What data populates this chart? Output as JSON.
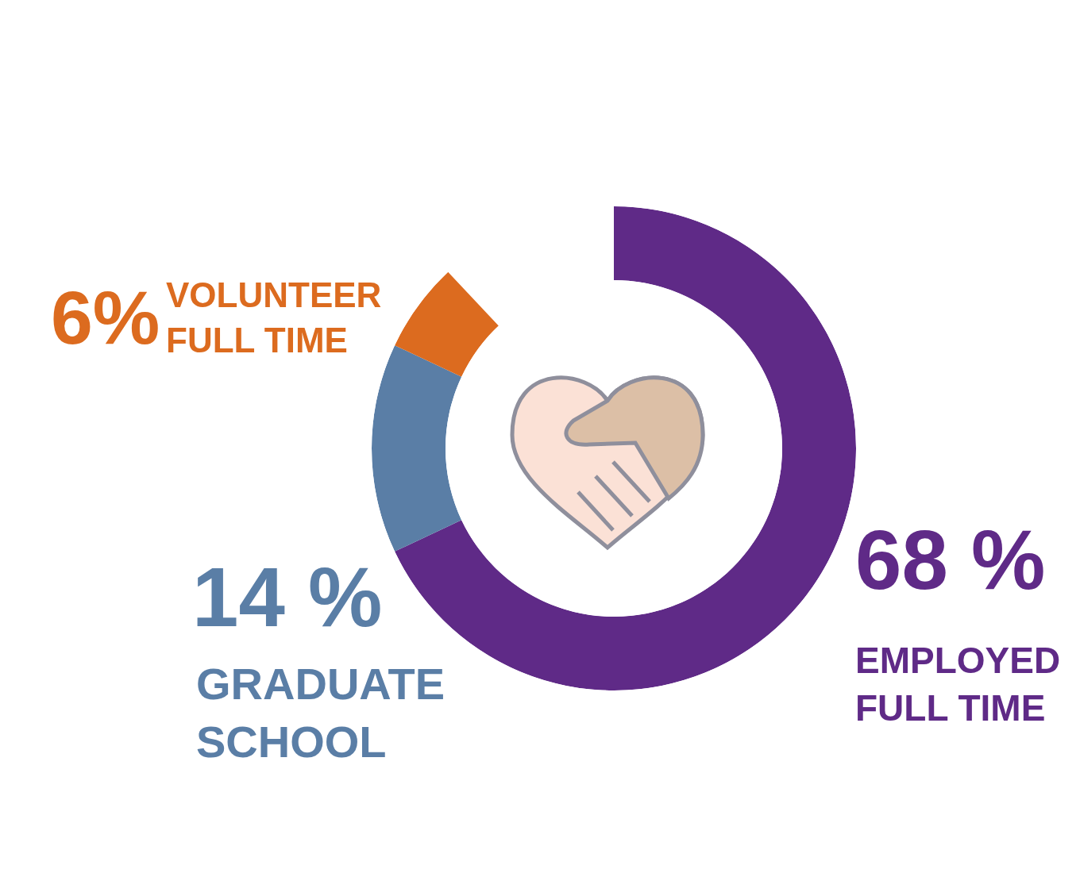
{
  "chart_data": {
    "type": "donut",
    "categories": [
      "EMPLOYED\nFULL TIME",
      "GRADUATE\nSCHOOL",
      "VOLUNTEER\nFULL TIME"
    ],
    "values": [
      68,
      14,
      6
    ],
    "value_labels": [
      "68 %",
      "14 %",
      "6%"
    ],
    "colors": [
      "#5f2a87",
      "#5a7ea6",
      "#dc6b1f"
    ]
  }
}
